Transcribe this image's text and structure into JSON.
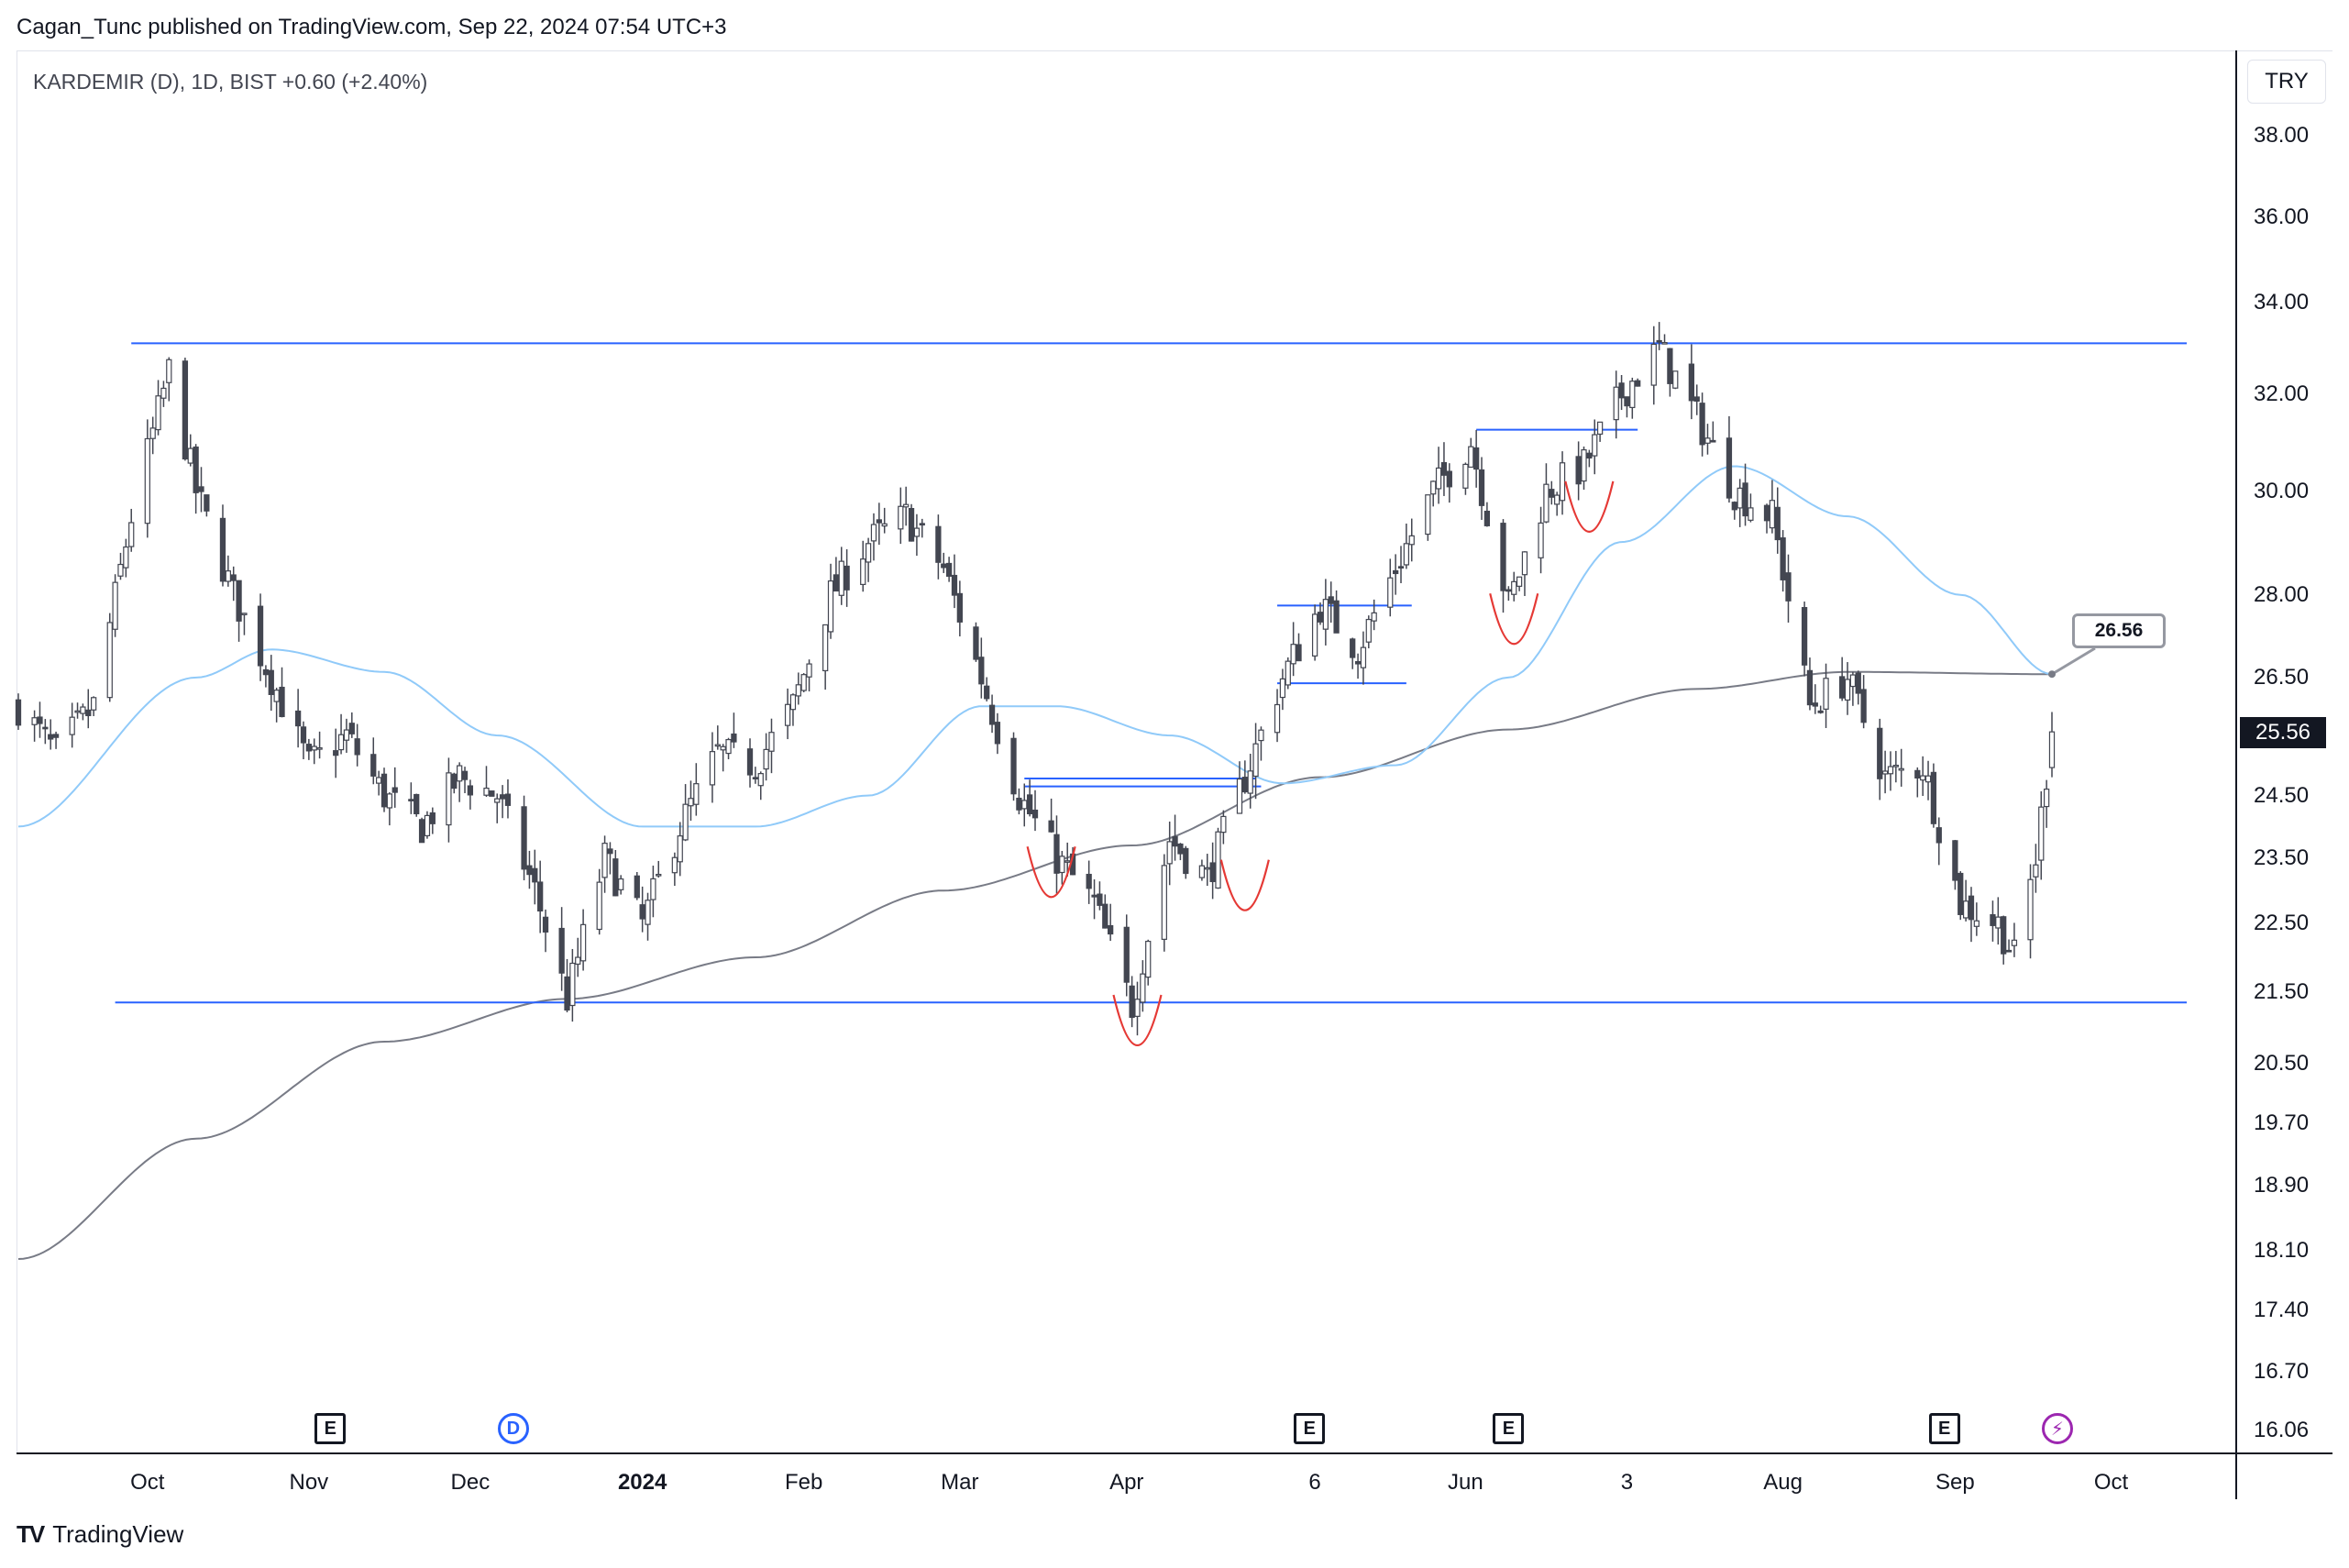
{
  "header": {
    "published": "Cagan_Tunc published on TradingView.com, Sep 22, 2024 07:54 UTC+3"
  },
  "legend": {
    "text": "KARDEMIR (D), 1D, BIST  +0.60 (+2.40%)"
  },
  "currency_label": "TRY",
  "last_price_label": "25.56",
  "callout_label": "26.56",
  "footer": {
    "brand": "TradingView"
  },
  "markers": [
    {
      "kind": "e",
      "label": "E"
    },
    {
      "kind": "d",
      "label": "D"
    },
    {
      "kind": "e",
      "label": "E"
    },
    {
      "kind": "e",
      "label": "E"
    },
    {
      "kind": "e",
      "label": "E"
    },
    {
      "kind": "s",
      "label": "⚡"
    }
  ],
  "colors": {
    "candle_up_fill": "#ffffff",
    "candle_down_fill": "#434651",
    "candle_border": "#434651",
    "ma_fast": "#90caf9",
    "ma_slow": "#787b86",
    "levels": "#2962ff",
    "pattern": "#e53935"
  },
  "chart_data": {
    "type": "candlestick",
    "symbol": "KARDEMIR",
    "interval": "1D",
    "exchange": "BIST",
    "currency": "TRY",
    "scale": "log",
    "y_ticks": [
      "38.00",
      "36.00",
      "34.00",
      "32.00",
      "30.00",
      "28.00",
      "26.50",
      "25.56",
      "24.50",
      "23.50",
      "22.50",
      "21.50",
      "20.50",
      "19.70",
      "18.90",
      "18.10",
      "17.40",
      "16.70",
      "16.06"
    ],
    "x_ticks": [
      {
        "label": "Oct",
        "bold": false
      },
      {
        "label": "Nov",
        "bold": false
      },
      {
        "label": "Dec",
        "bold": false
      },
      {
        "label": "2024",
        "bold": true
      },
      {
        "label": "Feb",
        "bold": false
      },
      {
        "label": "Mar",
        "bold": false
      },
      {
        "label": "Apr",
        "bold": false
      },
      {
        "label": "6",
        "bold": false
      },
      {
        "label": "Jun",
        "bold": false
      },
      {
        "label": "3",
        "bold": false
      },
      {
        "label": "Aug",
        "bold": false
      },
      {
        "label": "Sep",
        "bold": false
      },
      {
        "label": "Oct",
        "bold": false
      }
    ],
    "x_tick_dates": [
      "2023-10-02",
      "2023-11-01",
      "2023-12-01",
      "2024-01-02",
      "2024-02-01",
      "2024-03-01",
      "2024-04-01",
      "2024-05-06",
      "2024-06-03",
      "2024-07-03",
      "2024-08-01",
      "2024-09-02",
      "2024-10-01"
    ],
    "first_date": "2023-09-08",
    "last_date": "2024-09-20",
    "last_close": 25.56,
    "change": 0.6,
    "change_pct": 2.4,
    "close_path": [
      [
        "2023-09-08",
        26.0
      ],
      [
        "2023-09-15",
        25.2
      ],
      [
        "2023-09-22",
        26.0
      ],
      [
        "2023-09-29",
        29.5
      ],
      [
        "2023-10-06",
        32.5
      ],
      [
        "2023-10-11",
        30.0
      ],
      [
        "2023-10-18",
        28.0
      ],
      [
        "2023-10-25",
        26.5
      ],
      [
        "2023-11-01",
        25.0
      ],
      [
        "2023-11-08",
        25.5
      ],
      [
        "2023-11-15",
        24.5
      ],
      [
        "2023-11-22",
        24.0
      ],
      [
        "2023-11-29",
        24.8
      ],
      [
        "2023-12-06",
        24.5
      ],
      [
        "2023-12-13",
        23.0
      ],
      [
        "2023-12-19",
        21.4
      ],
      [
        "2023-12-26",
        23.5
      ],
      [
        "2024-01-02",
        22.5
      ],
      [
        "2024-01-09",
        24.0
      ],
      [
        "2024-01-16",
        25.2
      ],
      [
        "2024-01-23",
        25.0
      ],
      [
        "2024-01-30",
        26.0
      ],
      [
        "2024-02-06",
        28.0
      ],
      [
        "2024-02-13",
        29.0
      ],
      [
        "2024-02-20",
        29.5
      ],
      [
        "2024-02-27",
        28.5
      ],
      [
        "2024-03-05",
        26.5
      ],
      [
        "2024-03-12",
        24.5
      ],
      [
        "2024-03-19",
        23.5
      ],
      [
        "2024-03-26",
        22.8
      ],
      [
        "2024-04-02",
        21.3
      ],
      [
        "2024-04-09",
        23.8
      ],
      [
        "2024-04-16",
        23.2
      ],
      [
        "2024-04-23",
        24.8
      ],
      [
        "2024-04-30",
        26.5
      ],
      [
        "2024-05-07",
        27.8
      ],
      [
        "2024-05-14",
        27.0
      ],
      [
        "2024-05-21",
        28.5
      ],
      [
        "2024-05-28",
        30.0
      ],
      [
        "2024-06-04",
        31.0
      ],
      [
        "2024-06-11",
        27.8
      ],
      [
        "2024-06-18",
        30.0
      ],
      [
        "2024-06-25",
        30.5
      ],
      [
        "2024-07-02",
        32.0
      ],
      [
        "2024-07-09",
        33.0
      ],
      [
        "2024-07-16",
        31.5
      ],
      [
        "2024-07-23",
        30.0
      ],
      [
        "2024-07-30",
        29.5
      ],
      [
        "2024-08-06",
        26.0
      ],
      [
        "2024-08-13",
        26.5
      ],
      [
        "2024-08-20",
        24.8
      ],
      [
        "2024-08-27",
        25.0
      ],
      [
        "2024-09-03",
        22.8
      ],
      [
        "2024-09-10",
        22.5
      ],
      [
        "2024-09-13",
        22.0
      ],
      [
        "2024-09-17",
        23.5
      ],
      [
        "2024-09-20",
        25.56
      ]
    ],
    "indicators": [
      {
        "type": "moving_average",
        "role": "fast",
        "points": [
          [
            "2023-09-08",
            24.0
          ],
          [
            "2023-10-11",
            26.5
          ],
          [
            "2023-10-25",
            27.0
          ],
          [
            "2023-11-15",
            26.6
          ],
          [
            "2023-12-06",
            25.5
          ],
          [
            "2024-01-02",
            24.0
          ],
          [
            "2024-01-23",
            24.0
          ],
          [
            "2024-02-13",
            24.5
          ],
          [
            "2024-03-05",
            26.0
          ],
          [
            "2024-03-19",
            26.0
          ],
          [
            "2024-04-09",
            25.5
          ],
          [
            "2024-04-30",
            24.7
          ],
          [
            "2024-05-21",
            25.0
          ],
          [
            "2024-06-11",
            26.5
          ],
          [
            "2024-07-02",
            29.0
          ],
          [
            "2024-07-23",
            30.5
          ],
          [
            "2024-08-13",
            29.5
          ],
          [
            "2024-09-03",
            28.0
          ],
          [
            "2024-09-20",
            26.56
          ]
        ]
      },
      {
        "type": "moving_average",
        "role": "slow",
        "points": [
          [
            "2023-09-08",
            18.0
          ],
          [
            "2023-10-11",
            19.5
          ],
          [
            "2023-11-15",
            20.8
          ],
          [
            "2023-12-19",
            21.4
          ],
          [
            "2024-01-23",
            22.0
          ],
          [
            "2024-02-27",
            23.0
          ],
          [
            "2024-04-02",
            23.7
          ],
          [
            "2024-05-07",
            24.8
          ],
          [
            "2024-06-11",
            25.6
          ],
          [
            "2024-07-16",
            26.3
          ],
          [
            "2024-08-13",
            26.6
          ],
          [
            "2024-09-20",
            26.56
          ]
        ]
      }
    ],
    "horizontal_lines": [
      {
        "role": "resistance",
        "value": 33.1,
        "from": "2023-09-29",
        "to": "2024-10-31"
      },
      {
        "role": "support",
        "value": 21.35,
        "from": "2023-09-26",
        "to": "2024-10-31"
      },
      {
        "role": "neckline",
        "value": 24.78,
        "from": "2024-03-13",
        "to": "2024-04-25"
      },
      {
        "role": "neckline",
        "value": 24.65,
        "from": "2024-03-13",
        "to": "2024-04-26"
      },
      {
        "role": "box_top",
        "value": 27.8,
        "from": "2024-04-29",
        "to": "2024-05-24"
      },
      {
        "role": "box_bottom",
        "value": 26.4,
        "from": "2024-04-29",
        "to": "2024-05-23"
      },
      {
        "role": "box_top",
        "value": 31.25,
        "from": "2024-06-05",
        "to": "2024-07-05"
      }
    ],
    "pattern_arcs": [
      {
        "center": "2024-03-18",
        "value": 22.9
      },
      {
        "center": "2024-04-03",
        "value": 20.75
      },
      {
        "center": "2024-04-23",
        "value": 22.7
      },
      {
        "center": "2024-06-12",
        "value": 27.1
      },
      {
        "center": "2024-06-26",
        "value": 29.2
      }
    ],
    "grid": false
  }
}
